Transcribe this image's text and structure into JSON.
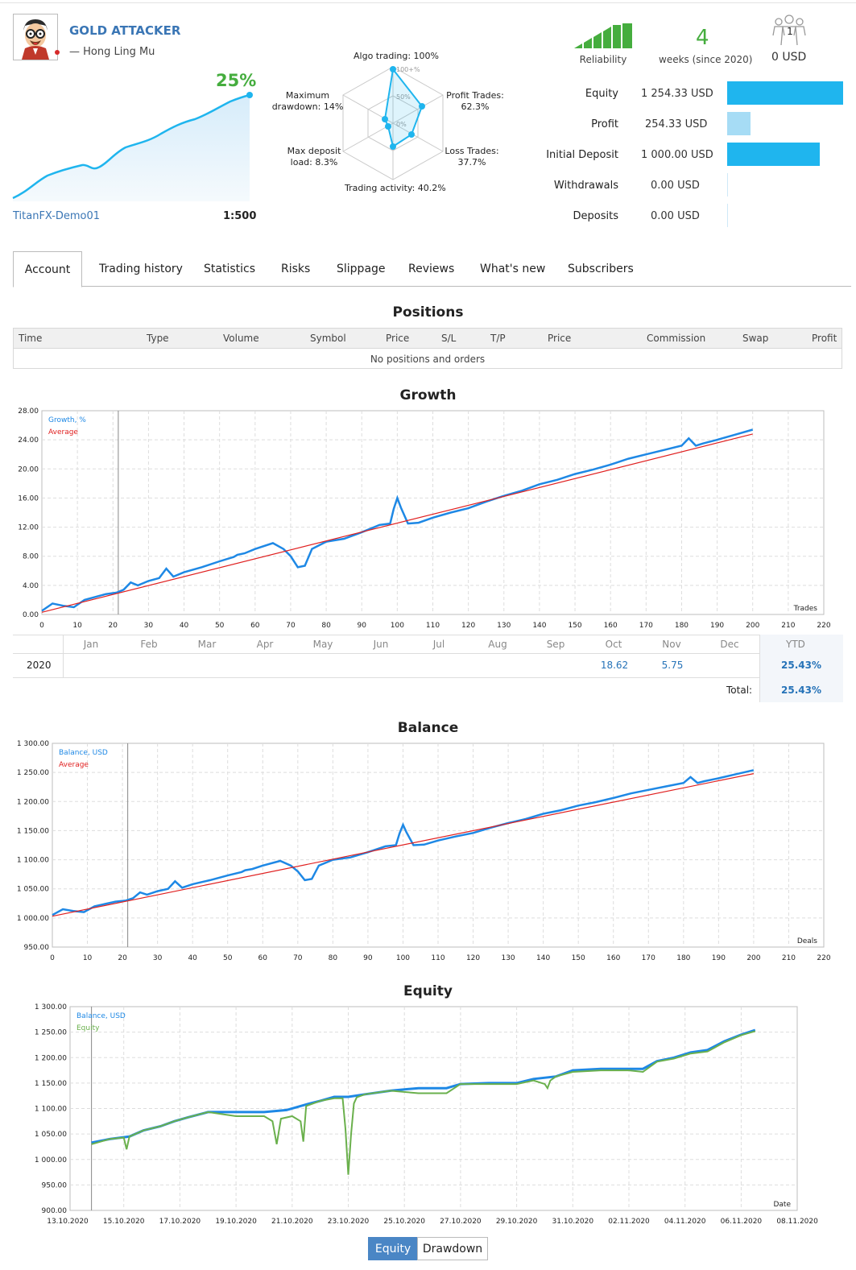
{
  "signal": {
    "name": "GOLD ATTACKER",
    "author": "— Hong Ling Mu",
    "growth": "25%",
    "account": "TitanFX-Demo01",
    "leverage": "1:500"
  },
  "radar": {
    "algo": "Algo trading: 100%",
    "profit_trades": [
      "Profit Trades:",
      "62.3%"
    ],
    "loss_trades": [
      "Loss Trades:",
      "37.7%"
    ],
    "activity": "Trading activity: 40.2%",
    "max_load": [
      "Max deposit",
      "load: 8.3%"
    ],
    "max_dd": [
      "Maximum",
      "drawdown: 14%"
    ],
    "ticks": [
      "100+%",
      "50%",
      "0%"
    ]
  },
  "summary": {
    "reliability_label": "Reliability",
    "weeks": "4",
    "weeks_label": "weeks (since 2020)",
    "subscribers_count": "1",
    "subscribers_usd": "0 USD"
  },
  "stats": [
    {
      "label": "Equity",
      "value": "1 254.33 USD",
      "fraction": 1.0,
      "color": "#1fb5ee"
    },
    {
      "label": "Profit",
      "value": "254.33 USD",
      "fraction": 0.2,
      "color": "#a6dcf5"
    },
    {
      "label": "Initial Deposit",
      "value": "1 000.00 USD",
      "fraction": 0.8,
      "color": "#1fb5ee"
    },
    {
      "label": "Withdrawals",
      "value": "0.00 USD",
      "fraction": 0,
      "color": "#1fb5ee"
    },
    {
      "label": "Deposits",
      "value": "0.00 USD",
      "fraction": 0,
      "color": "#1fb5ee"
    }
  ],
  "tabs": [
    "Account",
    "Trading history",
    "Statistics",
    "Risks",
    "Slippage",
    "Reviews",
    "What's new",
    "Subscribers"
  ],
  "positions": {
    "title": "Positions",
    "columns": [
      "Time",
      "Type",
      "Volume",
      "Symbol",
      "Price",
      "S/L",
      "T/P",
      "Price",
      "Commission",
      "Swap",
      "Profit"
    ],
    "empty": "No positions and orders"
  },
  "growth_table": {
    "months": [
      "Jan",
      "Feb",
      "Mar",
      "Apr",
      "May",
      "Jun",
      "Jul",
      "Aug",
      "Sep",
      "Oct",
      "Nov",
      "Dec"
    ],
    "ytd_label": "YTD",
    "year": "2020",
    "oct": "18.62",
    "nov": "5.75",
    "ytd": "25.43%",
    "total_label": "Total:",
    "total": "25.43%"
  },
  "buttons": {
    "equity": "Equity",
    "drawdown": "Drawdown"
  },
  "chart_data": [
    {
      "type": "line",
      "title": "Growth",
      "xlabel": "Trades",
      "xticks": [
        0,
        10,
        20,
        30,
        40,
        50,
        60,
        70,
        80,
        90,
        100,
        110,
        120,
        130,
        140,
        150,
        160,
        170,
        180,
        190,
        200,
        210,
        220
      ],
      "yticks": [
        "0.00",
        "4.00",
        "8.00",
        "12.00",
        "16.00",
        "20.00",
        "24.00",
        "28.00"
      ],
      "ylim": [
        0,
        28
      ],
      "xlim": [
        0,
        220
      ],
      "series": [
        {
          "name": "Growth, %",
          "color": "#1e88e5",
          "x": [
            0,
            3,
            6,
            9,
            12,
            15,
            18,
            21,
            23,
            25,
            27,
            30,
            33,
            35,
            37,
            40,
            45,
            50,
            54,
            55,
            57,
            60,
            65,
            68,
            70,
            72,
            74,
            76,
            80,
            85,
            90,
            95,
            98,
            99,
            100,
            101,
            103,
            106,
            110,
            115,
            120,
            125,
            130,
            135,
            140,
            145,
            150,
            155,
            160,
            165,
            170,
            175,
            180,
            182,
            184,
            186,
            190,
            195,
            200
          ],
          "y": [
            0.5,
            1.5,
            1.2,
            1.0,
            2.0,
            2.4,
            2.8,
            3.0,
            3.4,
            4.4,
            4.0,
            4.6,
            5.0,
            6.3,
            5.2,
            5.8,
            6.5,
            7.3,
            7.9,
            8.2,
            8.4,
            9.0,
            9.8,
            9.0,
            8.0,
            6.5,
            6.7,
            9.0,
            10.0,
            10.4,
            11.3,
            12.3,
            12.5,
            14.5,
            16.0,
            14.7,
            12.5,
            12.6,
            13.3,
            14.0,
            14.6,
            15.5,
            16.3,
            17.0,
            17.9,
            18.5,
            19.3,
            19.9,
            20.6,
            21.4,
            22.0,
            22.6,
            23.2,
            24.2,
            23.2,
            23.5,
            24.0,
            24.7,
            25.4
          ]
        },
        {
          "name": "Average",
          "color": "#e02020",
          "x": [
            0,
            200
          ],
          "y": [
            0.3,
            24.8
          ]
        }
      ]
    },
    {
      "type": "line",
      "title": "Balance",
      "xlabel": "Deals",
      "xticks": [
        0,
        10,
        20,
        30,
        40,
        50,
        60,
        70,
        80,
        90,
        100,
        110,
        120,
        130,
        140,
        150,
        160,
        170,
        180,
        190,
        200,
        210,
        220
      ],
      "yticks": [
        "950.00",
        "1 000.00",
        "1 050.00",
        "1 100.00",
        "1 150.00",
        "1 200.00",
        "1 250.00",
        "1 300.00"
      ],
      "ylim": [
        950,
        1300
      ],
      "xlim": [
        0,
        220
      ],
      "series": [
        {
          "name": "Balance, USD",
          "color": "#1e88e5",
          "x": [
            0,
            3,
            6,
            9,
            12,
            15,
            18,
            21,
            23,
            25,
            27,
            30,
            33,
            35,
            37,
            40,
            45,
            50,
            54,
            55,
            57,
            60,
            65,
            68,
            70,
            72,
            74,
            76,
            80,
            85,
            90,
            95,
            98,
            99,
            100,
            101,
            103,
            106,
            110,
            115,
            120,
            125,
            130,
            135,
            140,
            145,
            150,
            155,
            160,
            165,
            170,
            175,
            180,
            182,
            184,
            186,
            190,
            195,
            200
          ],
          "y": [
            1005,
            1015,
            1012,
            1010,
            1020,
            1024,
            1028,
            1030,
            1034,
            1044,
            1040,
            1046,
            1050,
            1063,
            1052,
            1058,
            1065,
            1073,
            1079,
            1082,
            1084,
            1090,
            1098,
            1090,
            1080,
            1065,
            1067,
            1090,
            1100,
            1104,
            1113,
            1123,
            1125,
            1145,
            1160,
            1147,
            1125,
            1126,
            1133,
            1140,
            1146,
            1155,
            1163,
            1170,
            1179,
            1185,
            1193,
            1199,
            1206,
            1214,
            1220,
            1226,
            1232,
            1242,
            1232,
            1235,
            1240,
            1247,
            1254
          ]
        },
        {
          "name": "Average",
          "color": "#e02020",
          "x": [
            0,
            200
          ],
          "y": [
            1003,
            1248
          ]
        }
      ]
    },
    {
      "type": "line",
      "title": "Equity",
      "xlabel": "Date",
      "xticks": [
        "13.10.2020",
        "15.10.2020",
        "17.10.2020",
        "19.10.2020",
        "21.10.2020",
        "23.10.2020",
        "25.10.2020",
        "27.10.2020",
        "29.10.2020",
        "31.10.2020",
        "02.11.2020",
        "04.11.2020",
        "06.11.2020",
        "08.11.2020"
      ],
      "yticks": [
        "900.00",
        "950.00",
        "1 000.00",
        "1 050.00",
        "1 100.00",
        "1 150.00",
        "1 200.00",
        "1 250.00",
        "1 300.00"
      ],
      "ylim": [
        900,
        1300
      ],
      "series": [
        {
          "name": "Balance, USD",
          "color": "#1e88e5",
          "x": [
            13.85,
            14.5,
            15.2,
            15.7,
            16.3,
            16.8,
            17.3,
            18.0,
            19.0,
            20.0,
            20.8,
            21.5,
            22.0,
            22.5,
            23.0,
            23.6,
            24.5,
            25.5,
            26.5,
            27.0,
            28.0,
            29.0,
            29.6,
            30.4,
            31.0,
            32.0,
            33.0,
            33.5,
            34.0,
            34.6,
            35.2,
            35.8,
            36.4,
            37.0,
            37.5
          ],
          "y": [
            1033,
            1040,
            1045,
            1057,
            1065,
            1075,
            1083,
            1093,
            1093,
            1093,
            1097,
            1108,
            1115,
            1123,
            1123,
            1128,
            1135,
            1140,
            1140,
            1148,
            1150,
            1150,
            1158,
            1163,
            1175,
            1178,
            1178,
            1178,
            1193,
            1200,
            1210,
            1215,
            1232,
            1245,
            1254
          ]
        },
        {
          "name": "Equity",
          "color": "#6ab04c",
          "x": [
            13.85,
            14.5,
            15.0,
            15.1,
            15.2,
            15.7,
            16.3,
            16.8,
            17.3,
            18.0,
            19.0,
            20.0,
            20.3,
            20.45,
            20.6,
            21.0,
            21.3,
            21.4,
            21.5,
            22.0,
            22.5,
            22.8,
            22.9,
            23.0,
            23.1,
            23.2,
            23.3,
            23.6,
            24.5,
            25.5,
            26.5,
            27.0,
            28.0,
            29.0,
            29.6,
            30.0,
            30.1,
            30.2,
            30.4,
            31.0,
            32.0,
            33.0,
            33.5,
            34.0,
            34.6,
            35.2,
            35.8,
            36.4,
            37.0,
            37.5
          ],
          "y": [
            1030,
            1040,
            1043,
            1020,
            1045,
            1057,
            1065,
            1075,
            1083,
            1093,
            1085,
            1085,
            1075,
            1030,
            1080,
            1085,
            1075,
            1035,
            1105,
            1115,
            1120,
            1120,
            1060,
            970,
            1050,
            1110,
            1122,
            1128,
            1135,
            1130,
            1130,
            1148,
            1148,
            1148,
            1155,
            1148,
            1140,
            1155,
            1163,
            1172,
            1175,
            1175,
            1172,
            1192,
            1198,
            1208,
            1212,
            1230,
            1244,
            1252
          ]
        }
      ]
    }
  ]
}
